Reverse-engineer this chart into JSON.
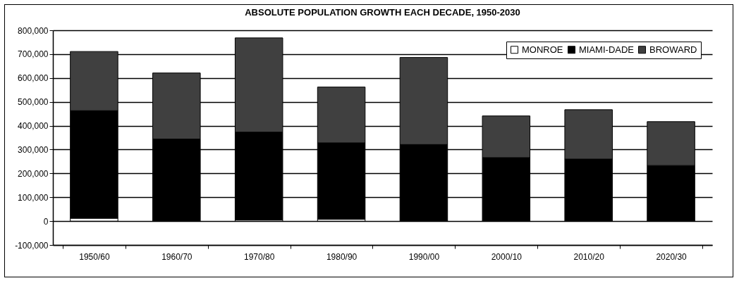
{
  "chart_data": {
    "type": "bar",
    "title": "ABSOLUTE POPULATION GROWTH EACH DECADE, 1950-2030",
    "stacked": true,
    "categories": [
      "1950/60",
      "1960/70",
      "1970/80",
      "1980/90",
      "1990/00",
      "2000/10",
      "2010/20",
      "2020/30"
    ],
    "series": [
      {
        "name": "MONROE",
        "color": "#ffffff",
        "values": [
          12000,
          null,
          5000,
          8000,
          null,
          null,
          null,
          null
        ]
      },
      {
        "name": "MIAMI-DADE",
        "color": "#000000",
        "values": [
          451000,
          344000,
          368000,
          320000,
          321000,
          266000,
          260000,
          233000
        ]
      },
      {
        "name": "BROWARD",
        "color": "#404040",
        "values": [
          248000,
          277000,
          395000,
          234000,
          365000,
          175000,
          207000,
          184000
        ]
      }
    ],
    "ylim": [
      -100000,
      800000
    ],
    "yticks": [
      {
        "value": -100000,
        "label": "-100,000"
      },
      0,
      {
        "value": 100000,
        "label": "100,000"
      },
      {
        "value": 200000,
        "label": "200,000"
      },
      {
        "value": 300000,
        "label": "300,000"
      },
      {
        "value": 400000,
        "label": "400,000"
      },
      {
        "value": 500000,
        "label": "500,000"
      },
      {
        "value": 600000,
        "label": "600,000"
      },
      {
        "value": 700000,
        "label": "700,000"
      },
      {
        "value": 800000,
        "label": "800,000"
      }
    ],
    "grid": "y",
    "legend": "top right"
  }
}
